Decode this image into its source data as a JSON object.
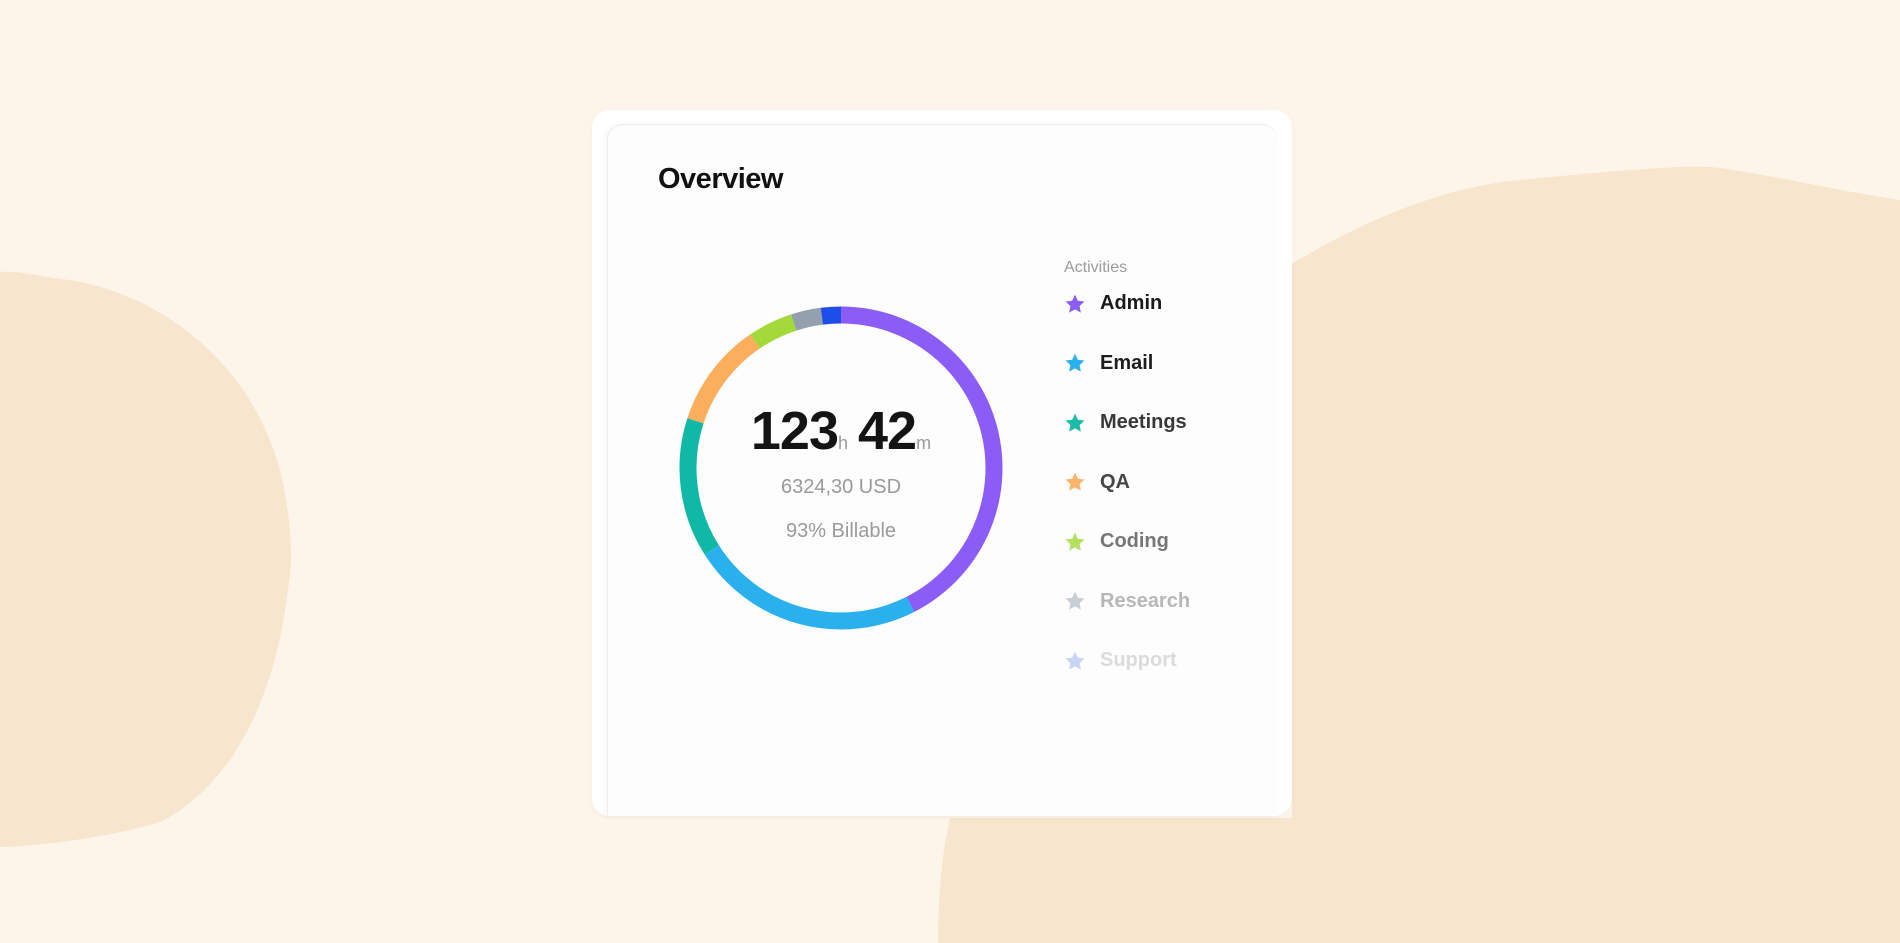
{
  "card": {
    "title": "Overview"
  },
  "summary": {
    "hours": "123",
    "hours_unit": "h",
    "minutes": "42",
    "minutes_unit": "m",
    "amount": "6324,30 USD",
    "billable": "93%  Billable"
  },
  "legend": {
    "title": "Activities",
    "items": [
      {
        "label": "Admin",
        "color": "#8b5cf6",
        "icon": "star-icon"
      },
      {
        "label": "Email",
        "color": "#2bb0ee",
        "icon": "star-icon"
      },
      {
        "label": "Meetings",
        "color": "#10b8a6",
        "icon": "star-icon"
      },
      {
        "label": "QA",
        "color": "#fbae5c",
        "icon": "star-icon"
      },
      {
        "label": "Coding",
        "color": "#a3da3a",
        "icon": "star-icon"
      },
      {
        "label": "Research",
        "color": "#a7b0bd",
        "icon": "star-icon"
      },
      {
        "label": "Support",
        "color": "#8aa2ee",
        "icon": "star-icon"
      }
    ]
  },
  "chart_data": {
    "type": "pie",
    "categories": [
      "Admin",
      "Email",
      "Meetings",
      "QA",
      "Coding",
      "Research",
      "Support"
    ],
    "values": [
      42.5,
      23.5,
      14,
      10.5,
      4.5,
      3,
      2
    ],
    "colors": [
      "#8b5cf6",
      "#2bb0ee",
      "#10b8a6",
      "#fbae5c",
      "#a3da3a",
      "#94a0ad",
      "#1d4fe8"
    ]
  }
}
